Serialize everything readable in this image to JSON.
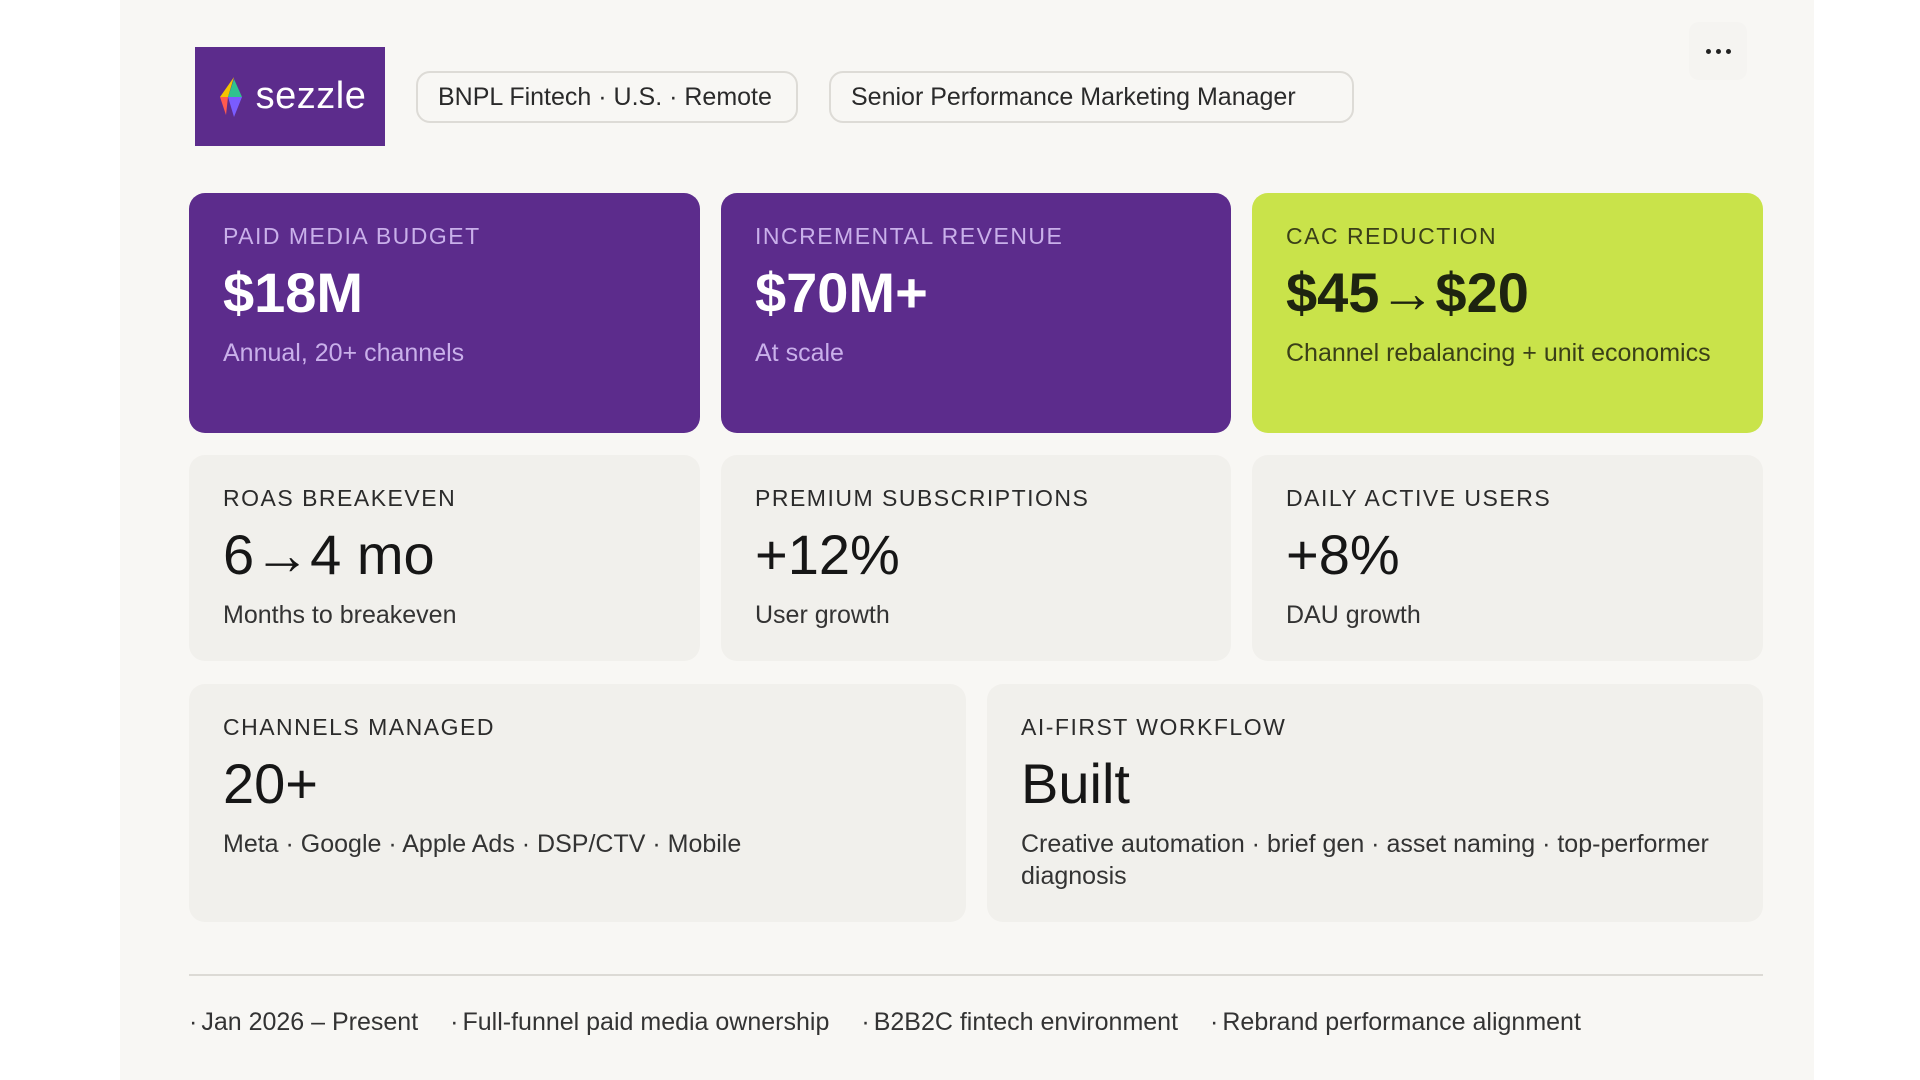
{
  "header": {
    "logo_text": "sezzle",
    "pills": [
      "BNPL Fintech · U.S. · Remote",
      "Senior Performance Marketing Manager"
    ],
    "more_icon": "more-horizontal-icon"
  },
  "colors": {
    "purple": "#5c2c8c",
    "lime": "#c9e34a",
    "card_bg": "#f1f0ec",
    "page_bg": "#f8f7f4"
  },
  "cards": [
    {
      "label": "PAID MEDIA BUDGET",
      "value": "$18M",
      "sub": "Annual, 20+ channels",
      "style": "purple"
    },
    {
      "label": "INCREMENTAL REVENUE",
      "value": "$70M+",
      "sub": "At scale",
      "style": "purple"
    },
    {
      "label": "CAC REDUCTION",
      "value": "$45→$20",
      "sub": "Channel rebalancing + unit economics",
      "style": "lime"
    },
    {
      "label": "ROAS BREAKEVEN",
      "value": "6→4 mo",
      "sub": "Months to breakeven",
      "style": "neutral"
    },
    {
      "label": "PREMIUM SUBSCRIPTIONS",
      "value": "+12%",
      "sub": "User growth",
      "style": "neutral"
    },
    {
      "label": "DAILY ACTIVE USERS",
      "value": "+8%",
      "sub": "DAU growth",
      "style": "neutral"
    },
    {
      "label": "CHANNELS MANAGED",
      "value": "20+",
      "sub": "Meta · Google · Apple Ads · DSP/CTV · Mobile",
      "style": "neutral"
    },
    {
      "label": "AI-FIRST WORKFLOW",
      "value": "Built",
      "sub": "Creative automation · brief gen · asset naming · top-performer diagnosis",
      "style": "neutral"
    }
  ],
  "footer": {
    "items": [
      "Jan 2026 – Present",
      "Full-funnel paid media ownership",
      "B2B2C fintech environment",
      "Rebrand performance alignment"
    ]
  }
}
